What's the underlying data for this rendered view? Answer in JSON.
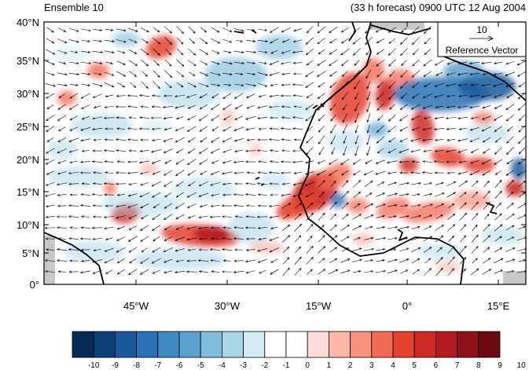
{
  "titles": {
    "left": "Ensemble 10",
    "right": "(33 h forecast) 0900 UTC 12 Aug 2004"
  },
  "map": {
    "lat_labels": [
      "40°N",
      "35°N",
      "30°N",
      "25°N",
      "20°N",
      "15°N",
      "10°N",
      "5°N",
      "0°"
    ],
    "lon_labels": [
      "45°W",
      "30°W",
      "15°W",
      "0°",
      "15°E"
    ]
  },
  "reference_vector": {
    "value": "10",
    "label": "Reference Vector"
  },
  "colorbar": {
    "labels": [
      "-10",
      "-9",
      "-8",
      "-7",
      "-6",
      "-5",
      "-4",
      "-3",
      "-2",
      "-1",
      "0",
      "1",
      "2",
      "3",
      "4",
      "5",
      "6",
      "7",
      "8",
      "9",
      "10"
    ],
    "colors": [
      "#052b57",
      "#0d3f7a",
      "#1a5a9c",
      "#2a72b5",
      "#3f8bc4",
      "#5aa1cf",
      "#80bcdc",
      "#a9d6e6",
      "#d3ecf4",
      "#ffffff",
      "#ffffff",
      "#fddbd6",
      "#fbb7a8",
      "#f7927d",
      "#f26a54",
      "#e5412f",
      "#cf2a24",
      "#b31a1e",
      "#8f1119",
      "#6b0a12"
    ]
  },
  "palette": {
    "land": "#000000",
    "missing": "#c8c8c8",
    "vector": "#000000"
  }
}
